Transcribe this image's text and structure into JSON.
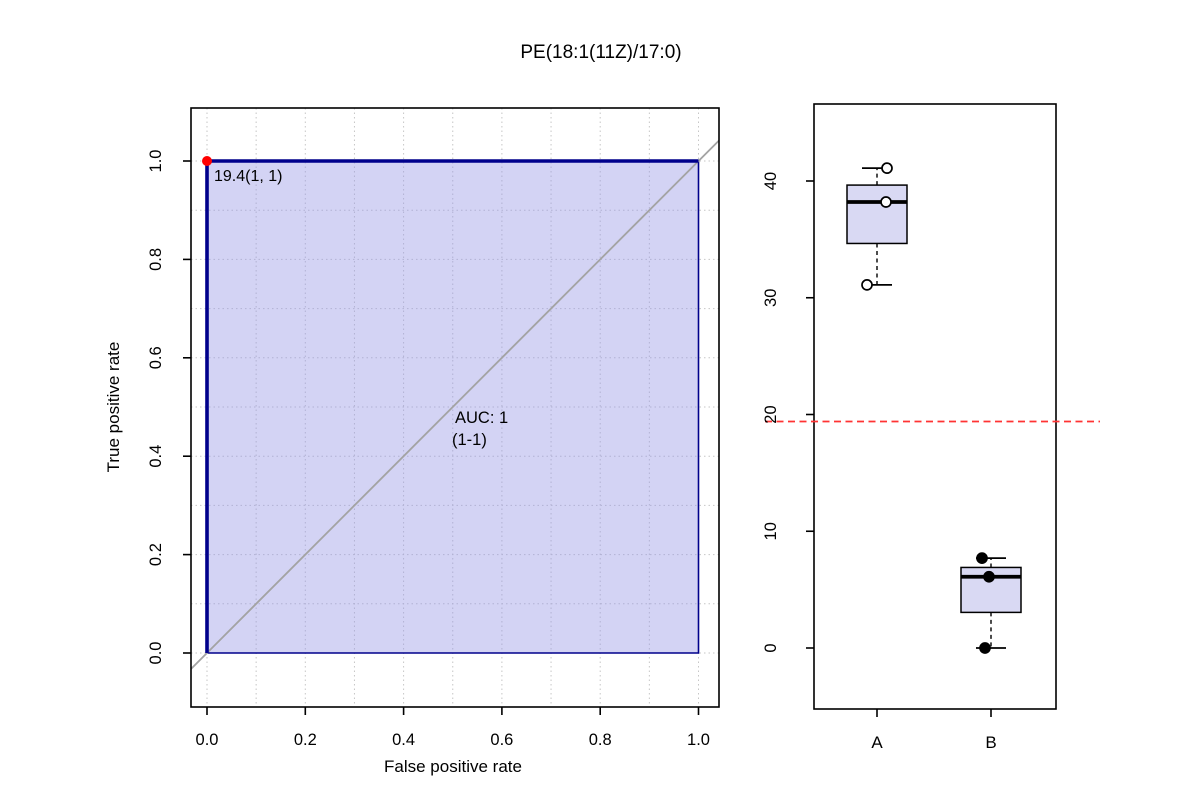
{
  "title": "PE(18:1(11Z)/17:0)",
  "colors": {
    "roc_line": "#00008b",
    "auc_text": "#00008b",
    "area_fill": "rgba(150,150,228,0.42)",
    "box_fill": "#d9d9f3",
    "cutoff_point": "#ff0000",
    "threshold_line": "#ff3333",
    "diagonal": "#a3a3a3",
    "grid": "#c6c6c6",
    "axis": "#000000"
  },
  "chart_data": [
    {
      "id": "roc-curve-plot",
      "type": "line",
      "xlabel": "False positive rate",
      "ylabel": "True positive rate",
      "xlim": [
        0,
        1
      ],
      "ylim": [
        0,
        1
      ],
      "xtick_labels": [
        "0.0",
        "0.2",
        "0.4",
        "0.6",
        "0.8",
        "1.0"
      ],
      "ytick_labels": [
        "0.0",
        "0.2",
        "0.4",
        "0.6",
        "0.8",
        "1.0"
      ],
      "grid": "on",
      "grid_step": 0.1,
      "roc_points": [
        [
          0,
          0
        ],
        [
          0,
          1
        ],
        [
          1,
          1
        ]
      ],
      "auc_label": "AUC: 1",
      "auc_ci_label": "(1-1)",
      "cutoff_point": {
        "fpr": 0,
        "tpr": 1,
        "label": "19.4(1, 1)"
      },
      "diagonal_reference": true
    },
    {
      "id": "group-boxplot",
      "type": "box",
      "categories": [
        "A",
        "B"
      ],
      "ytick_labels": [
        "0",
        "10",
        "20",
        "30",
        "40"
      ],
      "ylim": [
        -5,
        46.5
      ],
      "threshold_value": 19.4,
      "series": [
        {
          "name": "A",
          "whisker_low": 31.1,
          "q1": 34.65,
          "median": 38.2,
          "q3": 39.65,
          "whisker_high": 41.1,
          "points": [
            {
              "value": 41.1,
              "dx": 10
            },
            {
              "value": 38.2,
              "dx": 9
            },
            {
              "value": 31.1,
              "dx": -10
            }
          ],
          "point_style": "open"
        },
        {
          "name": "B",
          "whisker_low": 0,
          "q1": 3.05,
          "median": 6.1,
          "q3": 6.9,
          "whisker_high": 7.7,
          "points": [
            {
              "value": 7.7,
              "dx": -9
            },
            {
              "value": 6.1,
              "dx": -2
            },
            {
              "value": 0,
              "dx": -6
            }
          ],
          "point_style": "filled"
        }
      ]
    }
  ]
}
